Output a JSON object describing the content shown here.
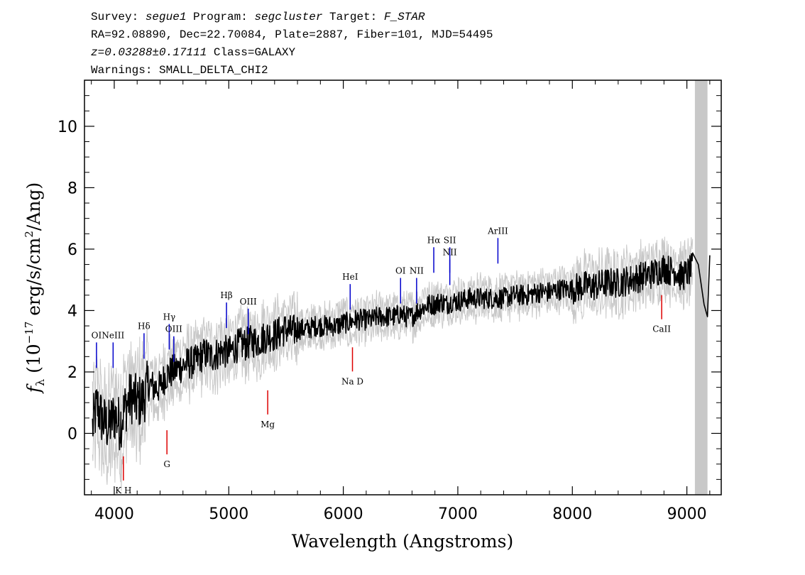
{
  "header": {
    "line1": {
      "survey_label": "Survey: ",
      "survey": "segue1",
      "program_label": " Program: ",
      "program": "segcluster",
      "target_label": " Target: ",
      "target": "F_STAR"
    },
    "line2": "RA=92.08890, Dec=22.70084, Plate=2887, Fiber=101, MJD=54495",
    "line3": {
      "z": "z=0.03288±0.17111",
      "class": " Class=GALAXY"
    },
    "line4": "Warnings: SMALL_DELTA_CHI2"
  },
  "chart_data": {
    "type": "line",
    "xlabel": "Wavelength (Angstroms)",
    "ylabel": "f_λ (10^-17 erg/s/cm^2/Ang)",
    "ylabel_parts": {
      "f": "f",
      "lambda": "λ",
      "open": " (10",
      "exp17": "−17",
      "mid": " erg/s/cm",
      "exp2": "2",
      "close": "/Ang)"
    },
    "xlim": [
      3740,
      9300
    ],
    "ylim": [
      -2.0,
      11.5
    ],
    "xticks": [
      4000,
      5000,
      6000,
      7000,
      8000,
      9000
    ],
    "yticks": [
      0,
      2,
      4,
      6,
      8,
      10
    ],
    "masked_band": [
      9070,
      9180
    ],
    "colors": {
      "flux": "#000000",
      "error_band": "#c8c8c8",
      "emission": "#0000cc",
      "absorption": "#dd0000",
      "mask": "#c8c8c8"
    },
    "series": [
      {
        "x": [
          3810,
          3850,
          3900,
          3950,
          4000,
          4050,
          4100,
          4150,
          4200,
          4250,
          4300,
          4350,
          4400,
          4450,
          4500,
          4550,
          4600,
          4650,
          4700,
          4750,
          4800,
          4850,
          4900,
          4950,
          5000,
          5050,
          5100,
          5150,
          5200,
          5250,
          5300,
          5350,
          5400,
          5450,
          5500,
          5550,
          5600,
          5650,
          5700,
          5750,
          5800,
          5850,
          5900,
          5950,
          6000,
          6050,
          6100,
          6150,
          6200,
          6250,
          6300,
          6350,
          6400,
          6450,
          6500,
          6550,
          6600,
          6650,
          6700,
          6750,
          6800,
          6850,
          6900,
          6950,
          7000,
          7100,
          7200,
          7300,
          7400,
          7500,
          7600,
          7700,
          7800,
          7900,
          8000,
          8100,
          8200,
          8300,
          8400,
          8500,
          8600,
          8700,
          8800,
          8850,
          8900,
          8950,
          9000,
          9050,
          9100,
          9150,
          9180,
          9200
        ],
        "y": [
          0.2,
          0.9,
          0.4,
          0.2,
          0.6,
          0.3,
          0.9,
          1.2,
          1.0,
          1.1,
          1.6,
          1.5,
          1.5,
          1.9,
          2.0,
          2.1,
          2.2,
          2.3,
          2.3,
          2.5,
          2.6,
          2.5,
          2.6,
          2.7,
          2.6,
          2.8,
          2.9,
          2.9,
          3.0,
          3.0,
          3.1,
          3.2,
          3.2,
          3.3,
          3.4,
          3.3,
          3.4,
          3.4,
          3.4,
          3.5,
          3.5,
          3.5,
          3.5,
          3.5,
          3.6,
          3.6,
          3.7,
          3.7,
          3.7,
          3.7,
          3.8,
          3.8,
          3.8,
          3.8,
          3.9,
          3.8,
          3.8,
          4.0,
          4.1,
          4.2,
          4.2,
          4.3,
          4.2,
          4.3,
          4.3,
          4.4,
          4.4,
          4.4,
          4.4,
          4.5,
          4.5,
          4.6,
          4.6,
          4.7,
          4.7,
          4.8,
          4.8,
          4.9,
          4.9,
          5.0,
          5.1,
          5.2,
          5.4,
          5.3,
          5.3,
          5.1,
          5.2,
          5.4,
          5.5,
          4.2,
          3.8,
          5.8
        ]
      }
    ],
    "emission_lines": [
      {
        "label": "OI",
        "x": 3845,
        "label_y": 3.1
      },
      {
        "label": "NeIII",
        "x": 3990,
        "label_y": 3.1
      },
      {
        "label": "Hδ",
        "x": 4260,
        "label_y": 3.4
      },
      {
        "label": "Hγ",
        "x": 4480,
        "label_y": 3.7
      },
      {
        "label": "OIII",
        "x": 4520,
        "label_y": 3.3
      },
      {
        "label": "Hβ",
        "x": 4980,
        "label_y": 4.4
      },
      {
        "label": "OIII",
        "x": 5170,
        "label_y": 4.2
      },
      {
        "label": "HeI",
        "x": 6060,
        "label_y": 5.0
      },
      {
        "label": "OI",
        "x": 6500,
        "label_y": 5.2
      },
      {
        "label": "NII",
        "x": 6640,
        "label_y": 5.2
      },
      {
        "label": "Hα",
        "x": 6790,
        "label_y": 6.2
      },
      {
        "label": "SII",
        "x": 6930,
        "label_y": 6.2
      },
      {
        "label": "NII",
        "x": 6930,
        "label_y": 5.8
      },
      {
        "label": "ArIII",
        "x": 7350,
        "label_y": 6.5
      }
    ],
    "absorption_lines": [
      {
        "label": "K H",
        "x": 4080,
        "label_y": -1.95
      },
      {
        "label": "G",
        "x": 4460,
        "label_y": -1.1
      },
      {
        "label": "Mg",
        "x": 5340,
        "label_y": 0.2
      },
      {
        "label": "Na D",
        "x": 6080,
        "label_y": 1.6
      },
      {
        "label": "CaII",
        "x": 8780,
        "label_y": 3.3
      }
    ]
  }
}
